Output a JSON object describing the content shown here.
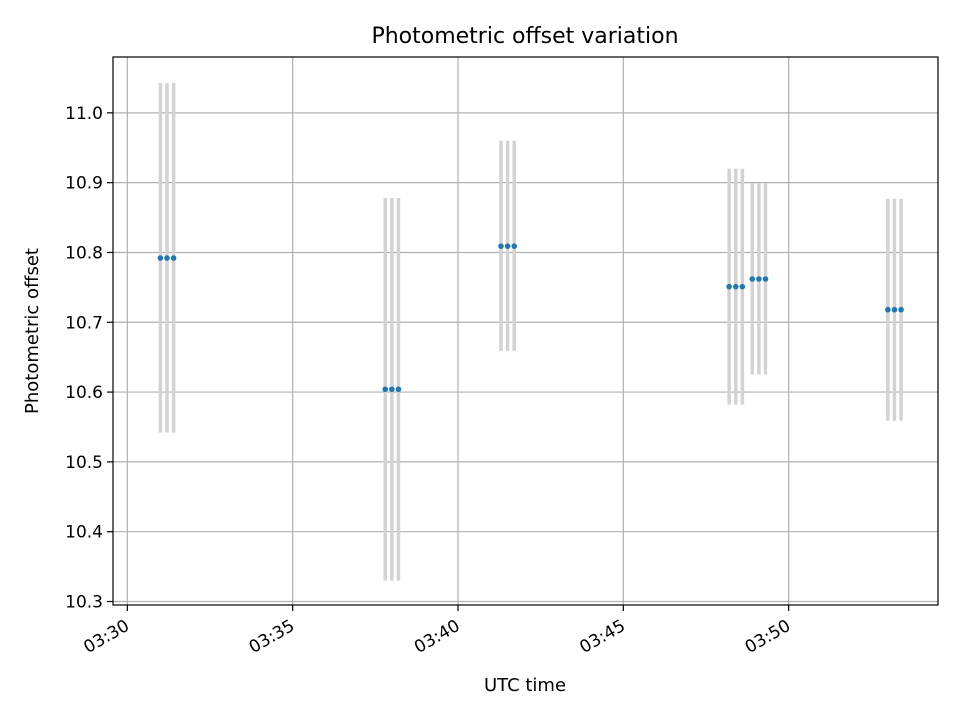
{
  "chart_data": {
    "type": "scatter",
    "title": "Photometric offset variation",
    "xlabel": "UTC time",
    "ylabel": "Photometric offset",
    "x_ticks": [
      "03:30",
      "03:35",
      "03:40",
      "03:45",
      "03:50"
    ],
    "y_ticks": [
      "10.3",
      "10.4",
      "10.5",
      "10.6",
      "10.7",
      "10.8",
      "10.9",
      "11.0"
    ],
    "xlim": [
      "03:30",
      "03:54"
    ],
    "ylim": [
      10.295,
      11.08
    ],
    "grid": true,
    "errorbar_color": "#d3d3d3",
    "marker_color": "#1f77b4",
    "series": [
      {
        "points": [
          {
            "time": "03:31:00",
            "offset": 10.792,
            "err_low": 10.542,
            "err_high": 11.043
          },
          {
            "time": "03:31:12",
            "offset": 10.792,
            "err_low": 10.542,
            "err_high": 11.043
          },
          {
            "time": "03:31:24",
            "offset": 10.792,
            "err_low": 10.542,
            "err_high": 11.043
          },
          {
            "time": "03:37:48",
            "offset": 10.604,
            "err_low": 10.33,
            "err_high": 10.878
          },
          {
            "time": "03:38:00",
            "offset": 10.604,
            "err_low": 10.33,
            "err_high": 10.878
          },
          {
            "time": "03:38:12",
            "offset": 10.604,
            "err_low": 10.33,
            "err_high": 10.878
          },
          {
            "time": "03:41:18",
            "offset": 10.809,
            "err_low": 10.659,
            "err_high": 10.96
          },
          {
            "time": "03:41:30",
            "offset": 10.809,
            "err_low": 10.659,
            "err_high": 10.96
          },
          {
            "time": "03:41:42",
            "offset": 10.809,
            "err_low": 10.659,
            "err_high": 10.96
          },
          {
            "time": "03:48:12",
            "offset": 10.751,
            "err_low": 10.582,
            "err_high": 10.92
          },
          {
            "time": "03:48:24",
            "offset": 10.751,
            "err_low": 10.582,
            "err_high": 10.92
          },
          {
            "time": "03:48:36",
            "offset": 10.751,
            "err_low": 10.582,
            "err_high": 10.92
          },
          {
            "time": "03:48:54",
            "offset": 10.762,
            "err_low": 10.625,
            "err_high": 10.899
          },
          {
            "time": "03:49:06",
            "offset": 10.762,
            "err_low": 10.625,
            "err_high": 10.899
          },
          {
            "time": "03:49:18",
            "offset": 10.762,
            "err_low": 10.625,
            "err_high": 10.899
          },
          {
            "time": "03:53:00",
            "offset": 10.718,
            "err_low": 10.559,
            "err_high": 10.877
          },
          {
            "time": "03:53:12",
            "offset": 10.718,
            "err_low": 10.559,
            "err_high": 10.877
          },
          {
            "time": "03:53:24",
            "offset": 10.718,
            "err_low": 10.559,
            "err_high": 10.877
          }
        ]
      }
    ]
  }
}
